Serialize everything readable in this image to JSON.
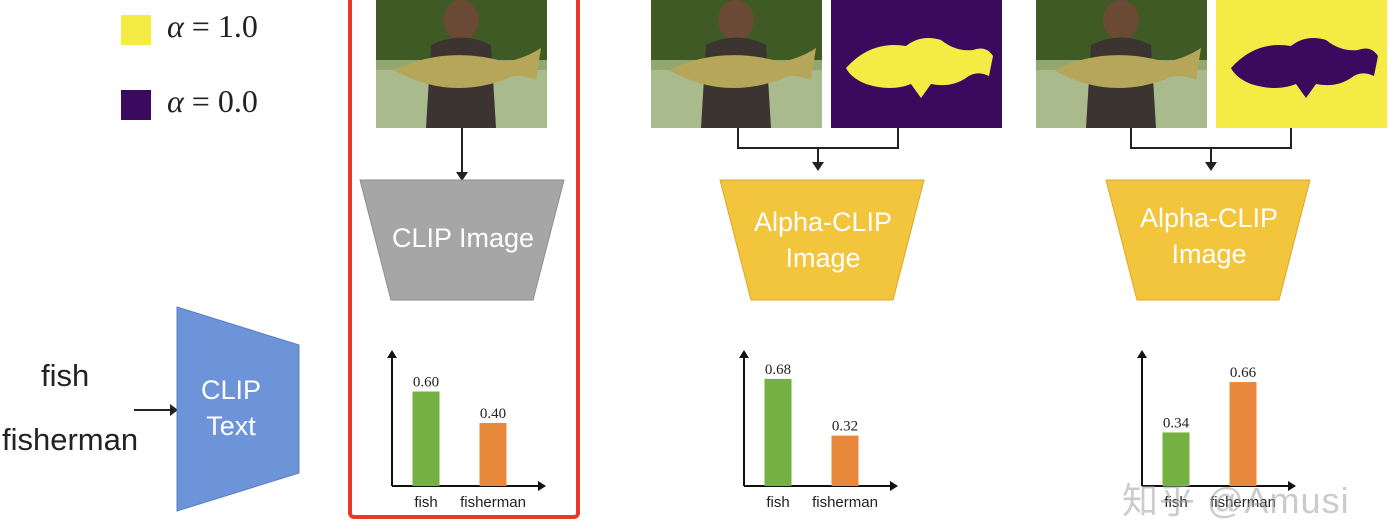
{
  "legend": [
    {
      "color": "#f4ec45",
      "symbol": "α",
      "text": " = 1.0"
    },
    {
      "color": "#3a0a5e",
      "symbol": "α",
      "text": " = 0.0"
    }
  ],
  "text_input": {
    "words": [
      "fish",
      "fisherman"
    ],
    "encoder_lines": [
      "CLIP",
      "Text"
    ],
    "encoder_color": "#6d94d8"
  },
  "panels": [
    {
      "encoder_lines": [
        "CLIP Image"
      ],
      "encoder_color": "#a6a6a6",
      "highlighted": true,
      "mask": null
    },
    {
      "encoder_lines": [
        "Alpha-CLIP",
        "Image"
      ],
      "encoder_color": "#f2c53d",
      "highlighted": false,
      "mask": {
        "background": "#3a0a5e",
        "fish": "#f4ec45"
      }
    },
    {
      "encoder_lines": [
        "Alpha-CLIP",
        "Image"
      ],
      "encoder_color": "#f2c53d",
      "highlighted": false,
      "mask": {
        "background": "#f4ec45",
        "fish": "#3a0a5e"
      }
    }
  ],
  "chart_data": [
    {
      "type": "bar",
      "categories": [
        "fish",
        "fisherman"
      ],
      "values": [
        0.6,
        0.4
      ],
      "value_labels": [
        "0.60",
        "0.40"
      ],
      "colors": [
        "#75b043",
        "#e8883a"
      ],
      "ylim": [
        0,
        0.8
      ]
    },
    {
      "type": "bar",
      "categories": [
        "fish",
        "fisherman"
      ],
      "values": [
        0.68,
        0.32
      ],
      "value_labels": [
        "0.68",
        "0.32"
      ],
      "colors": [
        "#75b043",
        "#e8883a"
      ],
      "ylim": [
        0,
        0.8
      ]
    },
    {
      "type": "bar",
      "categories": [
        "fish",
        "fisherman"
      ],
      "values": [
        0.34,
        0.66
      ],
      "value_labels": [
        "0.34",
        "0.66"
      ],
      "colors": [
        "#75b043",
        "#e8883a"
      ],
      "ylim": [
        0,
        0.8
      ]
    }
  ],
  "watermark": "知乎 @Amusi"
}
